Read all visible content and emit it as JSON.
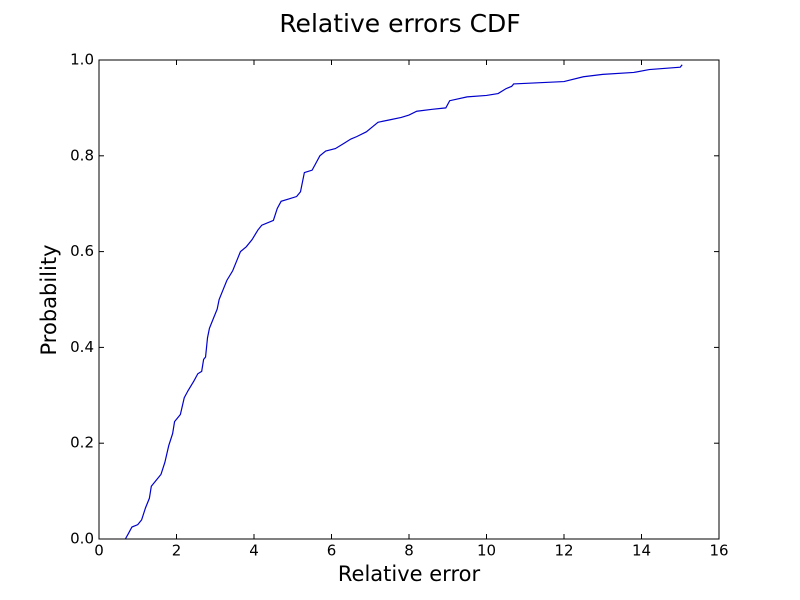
{
  "chart_data": {
    "type": "line",
    "title": "Relative errors CDF",
    "x_label": "Relative error",
    "y_label": "Probability",
    "xlim": [
      0,
      16
    ],
    "ylim": [
      0,
      1
    ],
    "xticks": [
      0,
      2,
      4,
      6,
      8,
      10,
      12,
      14,
      16
    ],
    "yticks": [
      {
        "value": 0,
        "label": "0.0"
      },
      {
        "value": 0.2,
        "label": "0.2"
      },
      {
        "value": 0.4,
        "label": "0.4"
      },
      {
        "value": 0.6,
        "label": "0.6"
      },
      {
        "value": 0.8,
        "label": "0.8"
      },
      {
        "value": 1,
        "label": "1.0"
      }
    ],
    "grid": false,
    "series": [
      {
        "color": "#0000cc",
        "x": [
          0.68,
          0.75,
          0.85,
          1.0,
          1.1,
          1.2,
          1.3,
          1.35,
          1.45,
          1.6,
          1.7,
          1.8,
          1.9,
          1.95,
          2.1,
          2.2,
          2.3,
          2.45,
          2.55,
          2.65,
          2.7,
          2.75,
          2.8,
          2.85,
          2.95,
          3.05,
          3.1,
          3.2,
          3.3,
          3.45,
          3.55,
          3.65,
          3.8,
          3.95,
          4.1,
          4.2,
          4.5,
          4.6,
          4.7,
          4.9,
          5.1,
          5.2,
          5.3,
          5.5,
          5.6,
          5.7,
          5.85,
          6.1,
          6.3,
          6.5,
          6.65,
          6.9,
          7.05,
          7.2,
          7.5,
          7.8,
          8.0,
          8.2,
          8.6,
          8.95,
          9.05,
          9.5,
          10.0,
          10.3,
          10.5,
          10.65,
          10.7,
          12.0,
          12.5,
          13.0,
          13.8,
          14.2,
          15.0,
          15.05
        ],
        "values": [
          0.0,
          0.01,
          0.025,
          0.03,
          0.04,
          0.065,
          0.085,
          0.11,
          0.12,
          0.135,
          0.16,
          0.195,
          0.22,
          0.245,
          0.26,
          0.295,
          0.31,
          0.33,
          0.345,
          0.35,
          0.375,
          0.38,
          0.42,
          0.44,
          0.46,
          0.48,
          0.5,
          0.52,
          0.54,
          0.56,
          0.58,
          0.6,
          0.61,
          0.625,
          0.645,
          0.655,
          0.665,
          0.69,
          0.705,
          0.71,
          0.715,
          0.725,
          0.765,
          0.77,
          0.785,
          0.8,
          0.81,
          0.815,
          0.825,
          0.835,
          0.84,
          0.85,
          0.86,
          0.87,
          0.875,
          0.88,
          0.885,
          0.893,
          0.897,
          0.9,
          0.915,
          0.923,
          0.926,
          0.93,
          0.94,
          0.945,
          0.95,
          0.955,
          0.965,
          0.97,
          0.974,
          0.98,
          0.985,
          0.99
        ]
      }
    ]
  }
}
